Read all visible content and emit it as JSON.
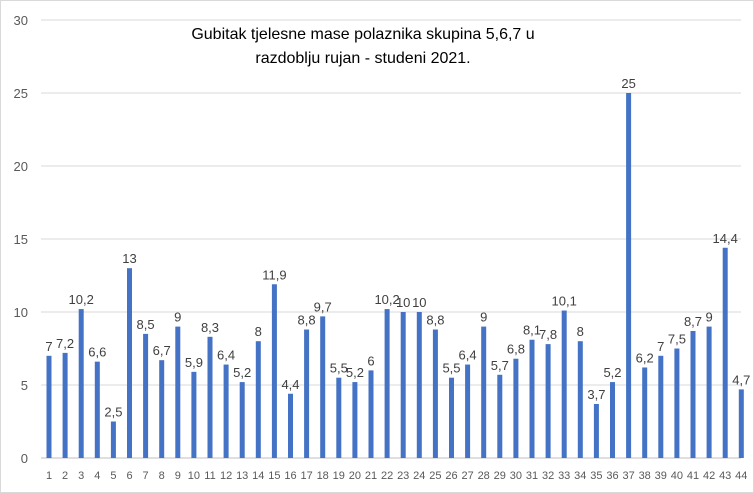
{
  "chart_data": {
    "type": "bar",
    "title_line1": "Gubitak tjelesne mase polaznika skupina 5,6,7 u",
    "title_line2": "razdoblju rujan - studeni 2021.",
    "xlabel": "",
    "ylabel": "",
    "ylim": [
      0,
      30
    ],
    "yticks": [
      0,
      5,
      10,
      15,
      20,
      25,
      30
    ],
    "grid": "horizontal",
    "legend": "none",
    "bar_color": "#4472C4",
    "categories": [
      "1",
      "2",
      "3",
      "4",
      "5",
      "6",
      "7",
      "8",
      "9",
      "10",
      "11",
      "12",
      "13",
      "14",
      "15",
      "16",
      "17",
      "18",
      "19",
      "20",
      "21",
      "22",
      "23",
      "24",
      "25",
      "26",
      "27",
      "28",
      "29",
      "30",
      "31",
      "32",
      "33",
      "34",
      "35",
      "36",
      "37",
      "38",
      "39",
      "40",
      "41",
      "42",
      "43",
      "44"
    ],
    "values": [
      7,
      7.2,
      10.2,
      6.6,
      2.5,
      13,
      8.5,
      6.7,
      9,
      5.9,
      8.3,
      6.4,
      5.2,
      8,
      11.9,
      4.4,
      8.8,
      9.7,
      5.5,
      5.2,
      6,
      10.2,
      10,
      10,
      8.8,
      5.5,
      6.4,
      9,
      5.7,
      6.8,
      8.1,
      7.8,
      10.1,
      8,
      3.7,
      5.2,
      25,
      6.2,
      7,
      7.5,
      8.7,
      9,
      14.4,
      4.7
    ],
    "data_labels": [
      "7",
      "7,2",
      "10,2",
      "6,6",
      "2,5",
      "13",
      "8,5",
      "6,7",
      "9",
      "5,9",
      "8,3",
      "6,4",
      "5,2",
      "8",
      "11,9",
      "4,4",
      "8,8",
      "9,7",
      "5,5",
      "5,2",
      "6",
      "10,2",
      "10",
      "10",
      "8,8",
      "5,5",
      "6,4",
      "9",
      "5,7",
      "6,8",
      "8,1",
      "7,8",
      "10,1",
      "8",
      "3,7",
      "5,2",
      "25",
      "6,2",
      "7",
      "7,5",
      "8,7",
      "9",
      "14,4",
      "4,7"
    ]
  }
}
